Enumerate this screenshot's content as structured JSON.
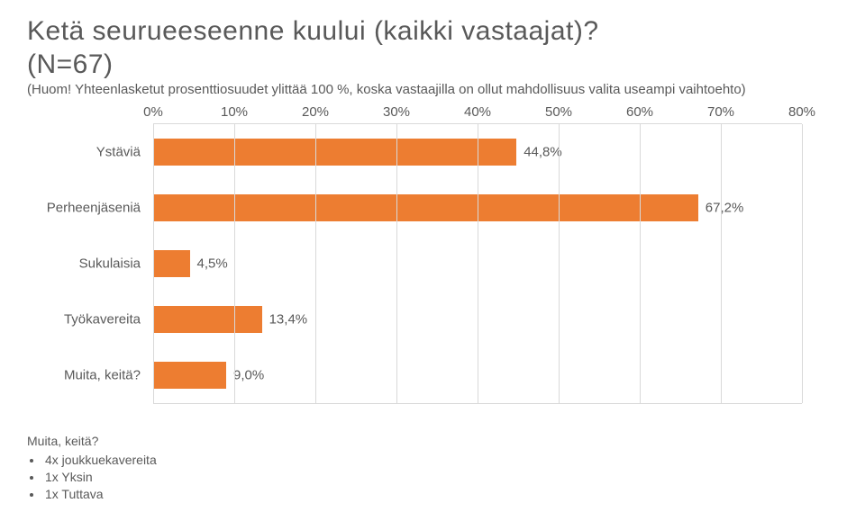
{
  "title": "Ketä seurueeseenne kuului (kaikki vastaajat)?",
  "subtitle": "(N=67)",
  "note": "(Huom! Yhteenlasketut prosenttiosuudet ylittää 100 %, koska vastaajilla on ollut mahdollisuus  valita useampi vaihtoehto)",
  "chart": {
    "type": "bar-horizontal",
    "xmin": 0,
    "xmax": 80,
    "xtick_step": 10,
    "xticklabels": [
      "0%",
      "10%",
      "20%",
      "30%",
      "40%",
      "50%",
      "60%",
      "70%",
      "80%"
    ],
    "bar_color": "#ed7d31",
    "grid_color": "#d9d9d9",
    "text_color": "#595959",
    "background_color": "#ffffff",
    "value_fontsize": 15,
    "label_fontsize": 15,
    "tick_fontsize": 15,
    "categories": [
      {
        "label": "Ystäviä",
        "value": 44.8,
        "value_label": "44,8%"
      },
      {
        "label": "Perheenjäseniä",
        "value": 67.2,
        "value_label": "67,2%"
      },
      {
        "label": "Sukulaisia",
        "value": 4.5,
        "value_label": "4,5%"
      },
      {
        "label": "Työkavereita",
        "value": 13.4,
        "value_label": "13,4%"
      },
      {
        "label": "Muita, keitä?",
        "value": 9.0,
        "value_label": "9,0%"
      }
    ]
  },
  "footer": {
    "heading": "Muita, keitä?",
    "items": [
      "4x joukkuekavereita",
      "1x Yksin",
      "1x Tuttava"
    ]
  }
}
